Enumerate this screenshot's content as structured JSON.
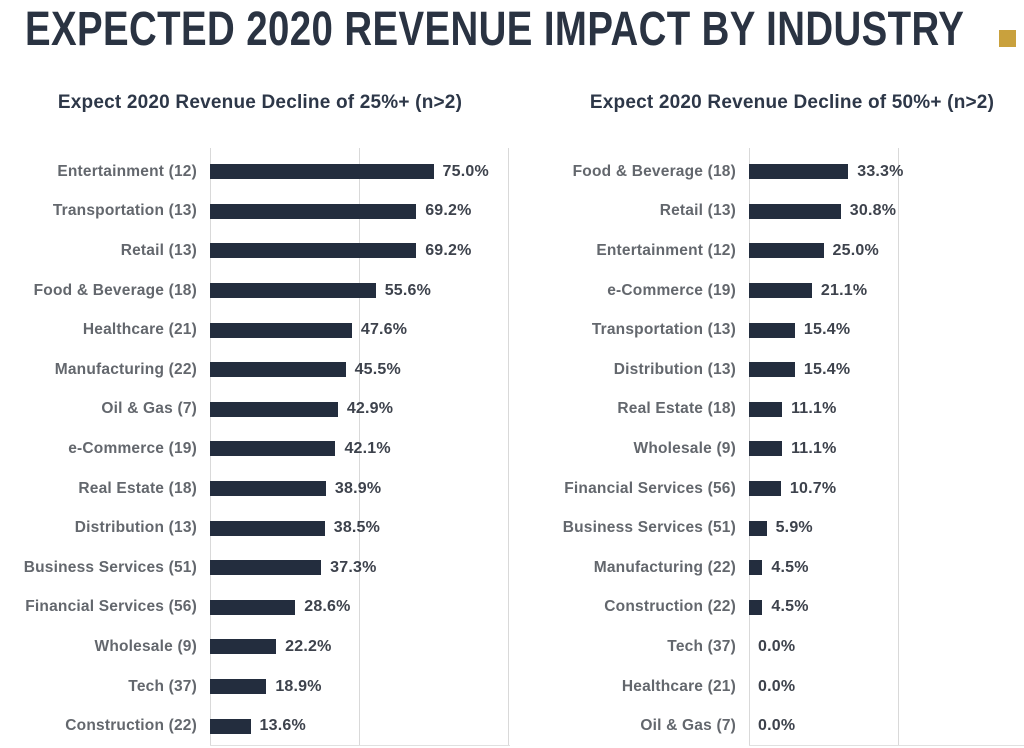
{
  "page_title": "EXPECTED 2020 REVENUE IMPACT BY INDUSTRY",
  "accent_color": "#C9A13D",
  "colors": {
    "title": "#2A3342",
    "subtitle": "#2D3748",
    "bar": "#232D3E",
    "category_label": "#63676D",
    "value_label": "#3D424C",
    "gridline": "#D9D9D9"
  },
  "chart_data": [
    {
      "type": "bar",
      "orientation": "horizontal",
      "title": "Expect 2020 Revenue Decline of 25%+ (n>2)",
      "categories": [
        "Entertainment (12)",
        "Transportation (13)",
        "Retail (13)",
        "Food & Beverage (18)",
        "Healthcare (21)",
        "Manufacturing (22)",
        "Oil & Gas (7)",
        "e-Commerce (19)",
        "Real Estate (18)",
        "Distribution (13)",
        "Business Services (51)",
        "Financial Services (56)",
        "Wholesale (9)",
        "Tech (37)",
        "Construction (22)"
      ],
      "values": [
        75.0,
        69.2,
        69.2,
        55.6,
        47.6,
        45.5,
        42.9,
        42.1,
        38.9,
        38.5,
        37.3,
        28.6,
        22.2,
        18.9,
        13.6
      ],
      "value_labels": [
        "75.0%",
        "69.2%",
        "69.2%",
        "55.6%",
        "47.6%",
        "45.5%",
        "42.9%",
        "42.1%",
        "38.9%",
        "38.5%",
        "37.3%",
        "28.6%",
        "22.2%",
        "18.9%",
        "13.6%"
      ],
      "xlim": [
        0,
        100
      ],
      "gridlines_pct": [
        0,
        50,
        100
      ],
      "grid": true,
      "legend": false,
      "data_labels": true
    },
    {
      "type": "bar",
      "orientation": "horizontal",
      "title": "Expect 2020 Revenue Decline of 50%+ (n>2)",
      "categories": [
        "Food & Beverage (18)",
        "Retail (13)",
        "Entertainment (12)",
        "e-Commerce (19)",
        "Transportation (13)",
        "Distribution (13)",
        "Real Estate (18)",
        "Wholesale (9)",
        "Financial Services (56)",
        "Business Services (51)",
        "Manufacturing (22)",
        "Construction (22)",
        "Tech (37)",
        "Healthcare (21)",
        "Oil & Gas (7)"
      ],
      "values": [
        33.3,
        30.8,
        25.0,
        21.1,
        15.4,
        15.4,
        11.1,
        11.1,
        10.7,
        5.9,
        4.5,
        4.5,
        0.0,
        0.0,
        0.0
      ],
      "value_labels": [
        "33.3%",
        "30.8%",
        "25.0%",
        "21.1%",
        "15.4%",
        "15.4%",
        "11.1%",
        "11.1%",
        "10.7%",
        "5.9%",
        "4.5%",
        "4.5%",
        "0.0%",
        "0.0%",
        "0.0%"
      ],
      "xlim": [
        0,
        100
      ],
      "gridlines_pct": [
        0,
        50,
        100
      ],
      "grid": true,
      "legend": false,
      "data_labels": true
    }
  ]
}
